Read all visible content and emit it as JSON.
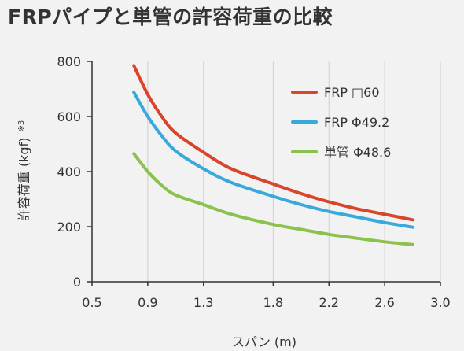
{
  "title": "FRPパイプと単管の許容荷重の比較",
  "chart_data": {
    "type": "line",
    "xlabel": "スパン (m)",
    "ylabel": "許容荷重 (kgf)",
    "ylabel_note": "※3",
    "xlim": [
      0.5,
      3.0
    ],
    "ylim": [
      0,
      800
    ],
    "x_ticks": [
      "0.5",
      "0.9",
      "1.3",
      "1.8",
      "2.2",
      "2.6",
      "3.0"
    ],
    "x_tick_values": [
      0.5,
      0.9,
      1.3,
      1.8,
      2.2,
      2.6,
      3.0
    ],
    "y_ticks": [
      "0",
      "200",
      "400",
      "600",
      "800"
    ],
    "y_tick_values": [
      0,
      200,
      400,
      600,
      800
    ],
    "grid": "vertical",
    "legend_position": "top-right",
    "x": [
      0.8,
      0.9,
      1.0,
      1.1,
      1.3,
      1.5,
      1.8,
      2.0,
      2.2,
      2.4,
      2.6,
      2.8
    ],
    "series": [
      {
        "name": "FRP □60",
        "color": "#d9442a",
        "values": [
          785,
          680,
          600,
          540,
          470,
          410,
          355,
          320,
          290,
          265,
          245,
          225
        ]
      },
      {
        "name": "FRP Φ49.2",
        "color": "#39a9dc",
        "values": [
          688,
          600,
          530,
          475,
          410,
          360,
          310,
          280,
          255,
          235,
          215,
          198
        ]
      },
      {
        "name": "単管 Φ48.6",
        "color": "#8cc14f",
        "values": [
          465,
          400,
          350,
          315,
          280,
          245,
          208,
          190,
          172,
          158,
          145,
          135
        ]
      }
    ]
  }
}
